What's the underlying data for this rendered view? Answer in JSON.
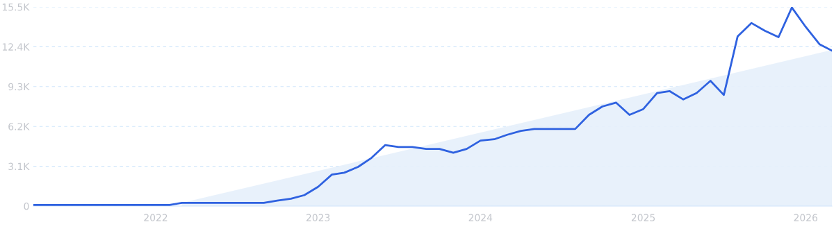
{
  "chart_data": {
    "type": "line",
    "x": [
      "2021-04",
      "2021-05",
      "2021-06",
      "2021-07",
      "2021-08",
      "2021-09",
      "2021-10",
      "2021-11",
      "2021-12",
      "2022-01",
      "2022-02",
      "2022-03",
      "2022-04",
      "2022-05",
      "2022-06",
      "2022-07",
      "2022-08",
      "2022-09",
      "2022-10",
      "2022-11",
      "2022-12",
      "2023-01",
      "2023-02",
      "2023-03",
      "2023-04",
      "2023-05",
      "2023-06",
      "2023-07",
      "2023-08",
      "2023-09",
      "2023-10",
      "2023-11",
      "2023-12",
      "2024-01",
      "2024-02",
      "2024-03",
      "2024-04",
      "2024-05",
      "2024-06",
      "2024-07",
      "2024-08",
      "2024-09",
      "2024-10",
      "2024-11",
      "2024-12",
      "2025-01",
      "2025-02",
      "2025-03",
      "2025-04",
      "2025-05",
      "2025-06",
      "2025-07",
      "2025-08",
      "2025-09",
      "2025-10",
      "2025-11",
      "2025-12",
      "2026-01",
      "2026-02",
      "2026-03"
    ],
    "series": [
      {
        "type": "area",
        "color": "#e6effb",
        "x": [
          "2022-03",
          "2026-03"
        ],
        "values": [
          250,
          12150
        ]
      },
      {
        "color": "#2f62e0",
        "values": [
          90,
          90,
          90,
          90,
          90,
          90,
          90,
          90,
          90,
          90,
          90,
          250,
          250,
          250,
          250,
          250,
          250,
          250,
          430,
          570,
          850,
          1500,
          2450,
          2600,
          3050,
          3750,
          4750,
          4600,
          4600,
          4450,
          4450,
          4150,
          4450,
          5100,
          5200,
          5550,
          5850,
          6000,
          6000,
          6000,
          6000,
          7100,
          7750,
          8050,
          7100,
          7550,
          8800,
          8950,
          8300,
          8800,
          9750,
          8650,
          13200,
          14250,
          13650,
          13150,
          15450,
          13950,
          12600,
          12100
        ]
      }
    ],
    "xlim": [
      "2021-04",
      "2026-03"
    ],
    "xticks": [
      {
        "value": "2022",
        "label": "2022"
      },
      {
        "value": "2023",
        "label": "2023"
      },
      {
        "value": "2024",
        "label": "2024"
      },
      {
        "value": "2025",
        "label": "2025"
      },
      {
        "value": "2026",
        "label": "2026"
      }
    ],
    "ylim": [
      0,
      15500
    ],
    "yticks": [
      0,
      {
        "value": 3100,
        "label": "3.1K"
      },
      {
        "value": 6200,
        "label": "6.2K"
      },
      {
        "value": 9300,
        "label": "9.3K"
      },
      {
        "value": 12400,
        "label": "12.4K"
      },
      {
        "value": 15500,
        "label": "15.5K"
      }
    ],
    "grid": "y",
    "marker": "none",
    "line_style": "solid"
  }
}
